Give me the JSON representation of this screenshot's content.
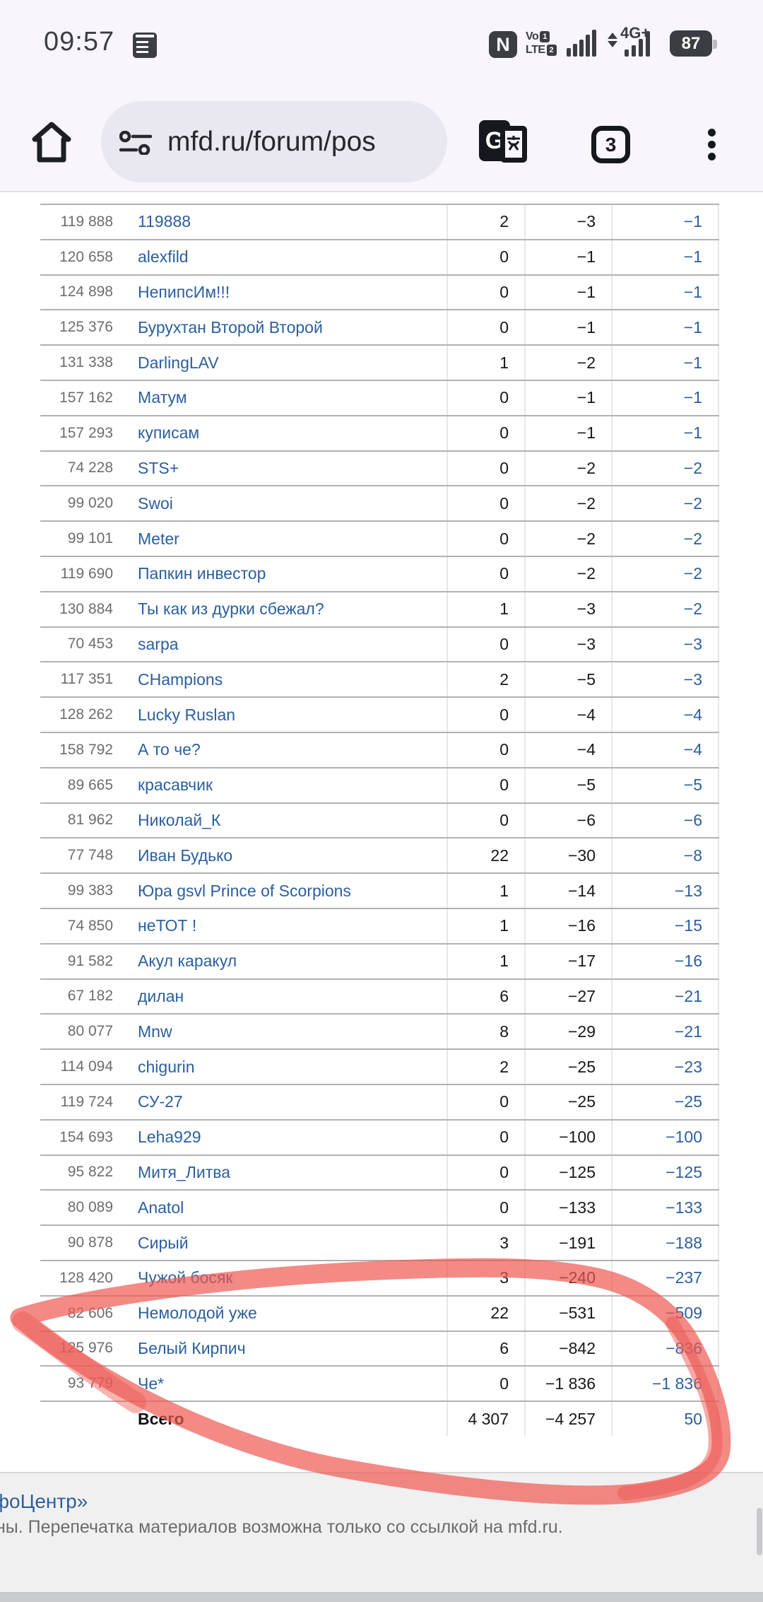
{
  "status_bar": {
    "time": "09:57",
    "nfc_label": "N",
    "volte_line1": "Vo",
    "volte_line2": "LTE",
    "sim1_badge": "1",
    "sim2_badge": "2",
    "network_label": "4G+",
    "battery_percent": "87"
  },
  "toolbar": {
    "url": "mfd.ru/forum/pos",
    "tab_count": "3",
    "translate_g": "G",
    "translate_glyph": "文"
  },
  "table": {
    "rows": [
      {
        "id": "119 888",
        "name": "119888",
        "plus": "2",
        "minus": "−3",
        "total": "−1"
      },
      {
        "id": "120 658",
        "name": "alexfild",
        "plus": "0",
        "minus": "−1",
        "total": "−1"
      },
      {
        "id": "124 898",
        "name": "НепипсИм!!!",
        "plus": "0",
        "minus": "−1",
        "total": "−1"
      },
      {
        "id": "125 376",
        "name": "Бурухтан Второй Второй",
        "plus": "0",
        "minus": "−1",
        "total": "−1"
      },
      {
        "id": "131 338",
        "name": "DarlingLAV",
        "plus": "1",
        "minus": "−2",
        "total": "−1"
      },
      {
        "id": "157 162",
        "name": "Матум",
        "plus": "0",
        "minus": "−1",
        "total": "−1"
      },
      {
        "id": "157 293",
        "name": "куписам",
        "plus": "0",
        "minus": "−1",
        "total": "−1"
      },
      {
        "id": "74 228",
        "name": "STS+",
        "plus": "0",
        "minus": "−2",
        "total": "−2"
      },
      {
        "id": "99 020",
        "name": "Swoi",
        "plus": "0",
        "minus": "−2",
        "total": "−2"
      },
      {
        "id": "99 101",
        "name": "Meter",
        "plus": "0",
        "minus": "−2",
        "total": "−2"
      },
      {
        "id": "119 690",
        "name": "Папкин инвестор",
        "plus": "0",
        "minus": "−2",
        "total": "−2"
      },
      {
        "id": "130 884",
        "name": "Ты как из дурки сбежал?",
        "plus": "1",
        "minus": "−3",
        "total": "−2"
      },
      {
        "id": "70 453",
        "name": "sarpa",
        "plus": "0",
        "minus": "−3",
        "total": "−3"
      },
      {
        "id": "117 351",
        "name": "CHampions",
        "plus": "2",
        "minus": "−5",
        "total": "−3"
      },
      {
        "id": "128 262",
        "name": "Lucky Ruslan",
        "plus": "0",
        "minus": "−4",
        "total": "−4"
      },
      {
        "id": "158 792",
        "name": "А то че?",
        "plus": "0",
        "minus": "−4",
        "total": "−4"
      },
      {
        "id": "89 665",
        "name": "красавчик",
        "plus": "0",
        "minus": "−5",
        "total": "−5"
      },
      {
        "id": "81 962",
        "name": "Николай_К",
        "plus": "0",
        "minus": "−6",
        "total": "−6"
      },
      {
        "id": "77 748",
        "name": "Иван Будько",
        "plus": "22",
        "minus": "−30",
        "total": "−8"
      },
      {
        "id": "99 383",
        "name": "Юра gsvl Prince of Scorpions",
        "plus": "1",
        "minus": "−14",
        "total": "−13"
      },
      {
        "id": "74 850",
        "name": "неТОТ !",
        "plus": "1",
        "minus": "−16",
        "total": "−15"
      },
      {
        "id": "91 582",
        "name": "Акул каракул",
        "plus": "1",
        "minus": "−17",
        "total": "−16"
      },
      {
        "id": "67 182",
        "name": "дилан",
        "plus": "6",
        "minus": "−27",
        "total": "−21"
      },
      {
        "id": "80 077",
        "name": "Mnw",
        "plus": "8",
        "minus": "−29",
        "total": "−21"
      },
      {
        "id": "114 094",
        "name": "chigurin",
        "plus": "2",
        "minus": "−25",
        "total": "−23"
      },
      {
        "id": "119 724",
        "name": "СУ-27",
        "plus": "0",
        "minus": "−25",
        "total": "−25"
      },
      {
        "id": "154 693",
        "name": "Leha929",
        "plus": "0",
        "minus": "−100",
        "total": "−100"
      },
      {
        "id": "95 822",
        "name": "Митя_Литва",
        "plus": "0",
        "minus": "−125",
        "total": "−125"
      },
      {
        "id": "80 089",
        "name": "Anatol",
        "plus": "0",
        "minus": "−133",
        "total": "−133"
      },
      {
        "id": "90 878",
        "name": "Сирый",
        "plus": "3",
        "minus": "−191",
        "total": "−188"
      },
      {
        "id": "128 420",
        "name": "Чужой босяк",
        "plus": "3",
        "minus": "−240",
        "total": "−237"
      },
      {
        "id": "82 606",
        "name": "Немолодой уже",
        "plus": "22",
        "minus": "−531",
        "total": "−509"
      },
      {
        "id": "125 976",
        "name": "Белый Кирпич",
        "plus": "6",
        "minus": "−842",
        "total": "−836"
      },
      {
        "id": "93 779",
        "name": "Че*",
        "plus": "0",
        "minus": "−1 836",
        "total": "−1 836"
      }
    ],
    "total_row": {
      "label": "Всего",
      "plus": "4 307",
      "minus": "−4 257",
      "total": "50"
    }
  },
  "footer": {
    "link_text": "фоЦентр»",
    "copyright": "ны. Перепечатка материалов возможна только со ссылкой на mfd.ru."
  },
  "colors": {
    "link_blue": "#2b5f9e",
    "marker_red": "#ee5851",
    "chrome_bg": "#f8f6fc",
    "footer_bg": "#f0f0f1",
    "separator": "#b2b2b2"
  }
}
